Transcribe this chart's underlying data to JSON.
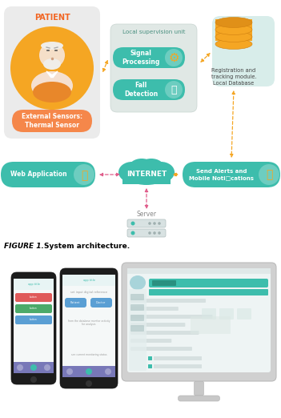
{
  "bg_color": "#ffffff",
  "teal": "#3dbdac",
  "orange": "#f5a623",
  "pink_arrow": "#e05c8a",
  "local_sup_label": "Local supervision unit",
  "signal_proc_label": "Signal\nProcessing",
  "fall_det_label": "Fall\nDetection",
  "reg_label": "Registration and\ntracking module.\nLocal Database",
  "web_app_label": "Web Application",
  "internet_label": "INTERNET",
  "server_label": "Server",
  "alerts_label": "Send Alerts and\nMobile Noti□cations",
  "patient_label": "PATIENT",
  "sensor_label": "External Sensors:\nThermal Sensor",
  "figure_label": "FIGURE 1.",
  "figure_caption": "System architecture."
}
